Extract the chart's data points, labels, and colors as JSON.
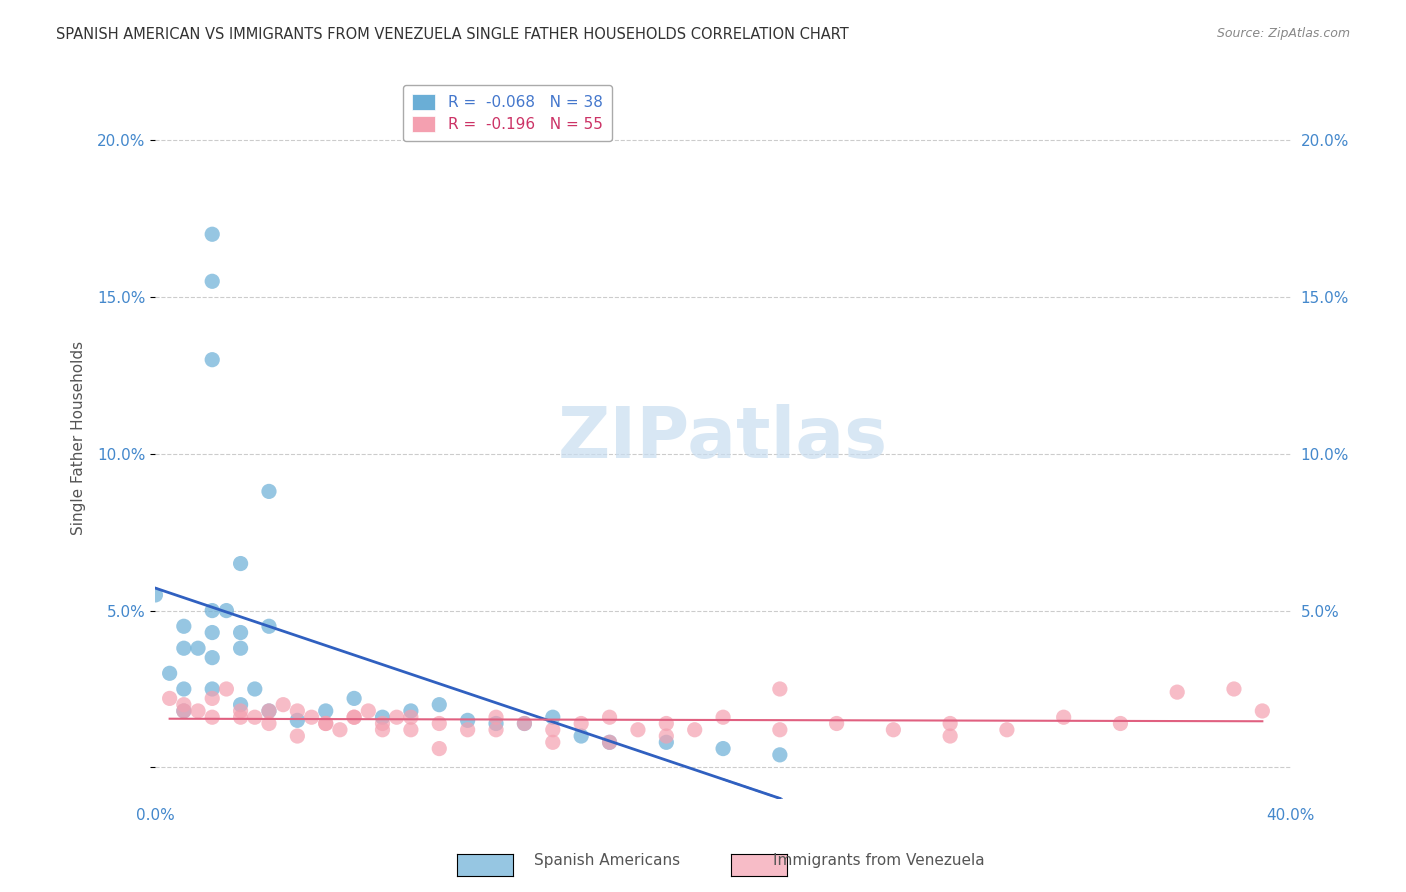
{
  "title": "SPANISH AMERICAN VS IMMIGRANTS FROM VENEZUELA SINGLE FATHER HOUSEHOLDS CORRELATION CHART",
  "source": "Source: ZipAtlas.com",
  "ylabel": "Single Father Households",
  "xlabel": "",
  "xlim": [
    0.0,
    0.4
  ],
  "ylim": [
    -0.01,
    0.22
  ],
  "yticks": [
    0.0,
    0.05,
    0.1,
    0.15,
    0.2
  ],
  "ytick_labels": [
    "",
    "5.0%",
    "10.0%",
    "15.0%",
    "20.0%"
  ],
  "xticks": [
    0.0,
    0.1,
    0.2,
    0.3,
    0.4
  ],
  "xtick_labels": [
    "0.0%",
    "",
    "",
    "",
    "40.0%"
  ],
  "legend_entries": [
    {
      "label": "R =  -0.068   N = 38",
      "color": "#a8c4e0"
    },
    {
      "label": "R =  -0.196   N = 55",
      "color": "#f0a0b0"
    }
  ],
  "blue_color": "#6aaed6",
  "pink_color": "#f4a0b0",
  "trend_blue": "#3060c0",
  "trend_pink": "#e06080",
  "watermark": "ZIPatlas",
  "blue_scatter_x": [
    0.02,
    0.02,
    0.02,
    0.04,
    0.0,
    0.01,
    0.01,
    0.02,
    0.02,
    0.03,
    0.03,
    0.03,
    0.04,
    0.005,
    0.01,
    0.01,
    0.015,
    0.02,
    0.025,
    0.02,
    0.03,
    0.035,
    0.04,
    0.05,
    0.06,
    0.07,
    0.08,
    0.09,
    0.1,
    0.11,
    0.12,
    0.13,
    0.14,
    0.15,
    0.16,
    0.18,
    0.2,
    0.22
  ],
  "blue_scatter_y": [
    0.17,
    0.155,
    0.13,
    0.088,
    0.055,
    0.045,
    0.038,
    0.035,
    0.05,
    0.065,
    0.043,
    0.038,
    0.045,
    0.03,
    0.025,
    0.018,
    0.038,
    0.043,
    0.05,
    0.025,
    0.02,
    0.025,
    0.018,
    0.015,
    0.018,
    0.022,
    0.016,
    0.018,
    0.02,
    0.015,
    0.014,
    0.014,
    0.016,
    0.01,
    0.008,
    0.008,
    0.006,
    0.004
  ],
  "pink_scatter_x": [
    0.005,
    0.01,
    0.015,
    0.02,
    0.025,
    0.03,
    0.035,
    0.04,
    0.045,
    0.05,
    0.055,
    0.06,
    0.065,
    0.07,
    0.075,
    0.08,
    0.085,
    0.09,
    0.1,
    0.11,
    0.12,
    0.13,
    0.14,
    0.15,
    0.16,
    0.17,
    0.18,
    0.19,
    0.2,
    0.22,
    0.24,
    0.26,
    0.28,
    0.3,
    0.32,
    0.34,
    0.36,
    0.38,
    0.39,
    0.01,
    0.02,
    0.03,
    0.04,
    0.05,
    0.06,
    0.07,
    0.08,
    0.09,
    0.1,
    0.12,
    0.14,
    0.16,
    0.18,
    0.22,
    0.28
  ],
  "pink_scatter_y": [
    0.022,
    0.02,
    0.018,
    0.016,
    0.025,
    0.018,
    0.016,
    0.014,
    0.02,
    0.018,
    0.016,
    0.014,
    0.012,
    0.016,
    0.018,
    0.014,
    0.016,
    0.012,
    0.014,
    0.012,
    0.016,
    0.014,
    0.012,
    0.014,
    0.016,
    0.012,
    0.014,
    0.012,
    0.016,
    0.025,
    0.014,
    0.012,
    0.014,
    0.012,
    0.016,
    0.014,
    0.024,
    0.025,
    0.018,
    0.018,
    0.022,
    0.016,
    0.018,
    0.01,
    0.014,
    0.016,
    0.012,
    0.016,
    0.006,
    0.012,
    0.008,
    0.008,
    0.01,
    0.012,
    0.01
  ]
}
